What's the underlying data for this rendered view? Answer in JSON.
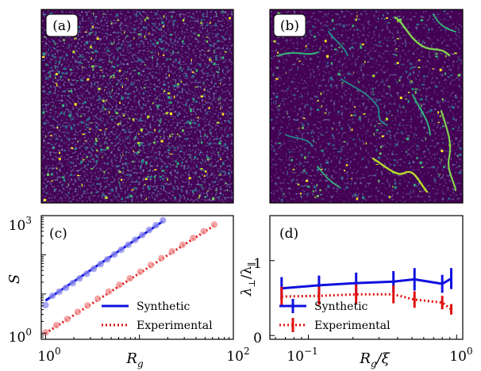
{
  "panels": {
    "a": {
      "label": "(a)"
    },
    "b": {
      "label": "(b)"
    }
  },
  "colors": {
    "background_map": "#440154",
    "synthetic": "#1010e0",
    "experimental": "#e01010",
    "synthetic_points": "#8a8aee",
    "experimental_points": "#f08a8a"
  },
  "chart_data": [
    {
      "panel": "(c)",
      "type": "scatter",
      "xscale": "log",
      "yscale": "log",
      "xlabel": "R_g",
      "ylabel": "S",
      "xlim": [
        0.9,
        100
      ],
      "ylim": [
        0.7,
        1000
      ],
      "xticks": [
        {
          "value": 1,
          "label": "10^0"
        },
        {
          "value": 100,
          "label": "10^2"
        }
      ],
      "yticks": [
        {
          "value": 1,
          "label": "10^0"
        },
        {
          "value": 1000,
          "label": "10^3"
        }
      ],
      "legend": {
        "placement": "lower-right",
        "entries": [
          "Synthetic",
          "Experimental"
        ]
      },
      "series": [
        {
          "name": "Synthetic",
          "style": "solid-line-with-points",
          "color": "#1010e0",
          "points": [
            [
              1.0,
              5.2
            ],
            [
              1.18,
              9.0
            ],
            [
              1.4,
              11.5
            ],
            [
              1.65,
              14.5
            ],
            [
              1.95,
              19.0
            ],
            [
              2.3,
              25.0
            ],
            [
              2.75,
              33.0
            ],
            [
              3.25,
              44.0
            ],
            [
              3.85,
              58.0
            ],
            [
              4.55,
              77.0
            ],
            [
              5.4,
              102.0
            ],
            [
              6.4,
              135.0
            ],
            [
              7.6,
              180.0
            ],
            [
              9.0,
              240.0
            ],
            [
              10.7,
              320.0
            ],
            [
              12.7,
              430.0
            ],
            [
              15.0,
              570.0
            ],
            [
              17.8,
              760.0
            ]
          ],
          "fit": [
            [
              1.0,
              6.8
            ],
            [
              17.8,
              720.0
            ]
          ]
        },
        {
          "name": "Experimental",
          "style": "dotted-line-with-points",
          "color": "#e01010",
          "points": [
            [
              1.0,
              1.05
            ],
            [
              1.3,
              1.6
            ],
            [
              1.7,
              2.3
            ],
            [
              2.2,
              3.5
            ],
            [
              2.8,
              5.1
            ],
            [
              3.6,
              7.6
            ],
            [
              4.7,
              11.5
            ],
            [
              6.1,
              17.0
            ],
            [
              7.9,
              25.0
            ],
            [
              10.2,
              37.0
            ],
            [
              13.2,
              55.0
            ],
            [
              17.1,
              82.0
            ],
            [
              22.2,
              122.0
            ],
            [
              28.8,
              180.0
            ],
            [
              37.3,
              268.0
            ],
            [
              48.3,
              400.0
            ],
            [
              62.6,
              590.0
            ]
          ],
          "fit": [
            [
              1.0,
              1.0
            ],
            [
              62.6,
              560.0
            ]
          ]
        }
      ]
    },
    {
      "panel": "(d)",
      "type": "line",
      "xscale": "log",
      "yscale": "linear",
      "xlabel": "R_g/ξ",
      "ylabel": "λ⊥/λ∥",
      "xlim": [
        0.055,
        1.1
      ],
      "ylim": [
        -0.05,
        1.6
      ],
      "xticks": [
        {
          "value": 0.1,
          "label": "10^-1"
        },
        {
          "value": 1,
          "label": "10^0"
        }
      ],
      "yticks": [
        {
          "value": 0,
          "label": "0"
        },
        {
          "value": 1,
          "label": "1"
        }
      ],
      "legend": {
        "placement": "lower-left",
        "entries": [
          "Synthetic",
          "Experimental"
        ]
      },
      "series": [
        {
          "name": "Synthetic",
          "style": "solid-line-with-errorbars",
          "color": "#1010e0",
          "x": [
            0.066,
            0.118,
            0.21,
            0.375,
            0.52,
            0.8,
            0.92
          ],
          "y": [
            0.63,
            0.67,
            0.7,
            0.72,
            0.75,
            0.69,
            0.76
          ],
          "err": [
            0.15,
            0.13,
            0.14,
            0.14,
            0.15,
            0.12,
            0.14
          ]
        },
        {
          "name": "Experimental",
          "style": "dotted-line-with-errorbars",
          "color": "#e01010",
          "x": [
            0.066,
            0.118,
            0.21,
            0.375,
            0.52,
            0.8,
            0.92
          ],
          "y": [
            0.52,
            0.53,
            0.55,
            0.55,
            0.48,
            0.44,
            0.35
          ],
          "err": [
            0.13,
            0.12,
            0.13,
            0.12,
            0.11,
            0.09,
            0.07
          ]
        }
      ]
    }
  ],
  "tick_text": {
    "c_x0_base": "10",
    "c_x0_exp": "0",
    "c_x1_base": "10",
    "c_x1_exp": "2",
    "c_y0_base": "10",
    "c_y0_exp": "0",
    "c_y1_base": "10",
    "c_y1_exp": "3",
    "d_x0_base": "10",
    "d_x0_exp": "−1",
    "d_x1_base": "10",
    "d_x1_exp": "0",
    "d_y0": "0",
    "d_y1": "1"
  },
  "labels": {
    "c_panel": "(c)",
    "d_panel": "(d)",
    "c_xlabel_main": "R",
    "c_xlabel_sub": "g",
    "c_ylabel": "S",
    "d_xlabel_main": "R",
    "d_xlabel_sub": "g",
    "d_xlabel_rest": "/ξ",
    "d_ylabel_num": "λ",
    "d_ylabel_num_sub": "⊥",
    "d_ylabel_den": "/λ",
    "d_ylabel_den_sub": "∥",
    "legend_synthetic": "Synthetic",
    "legend_experimental": "Experimental"
  }
}
